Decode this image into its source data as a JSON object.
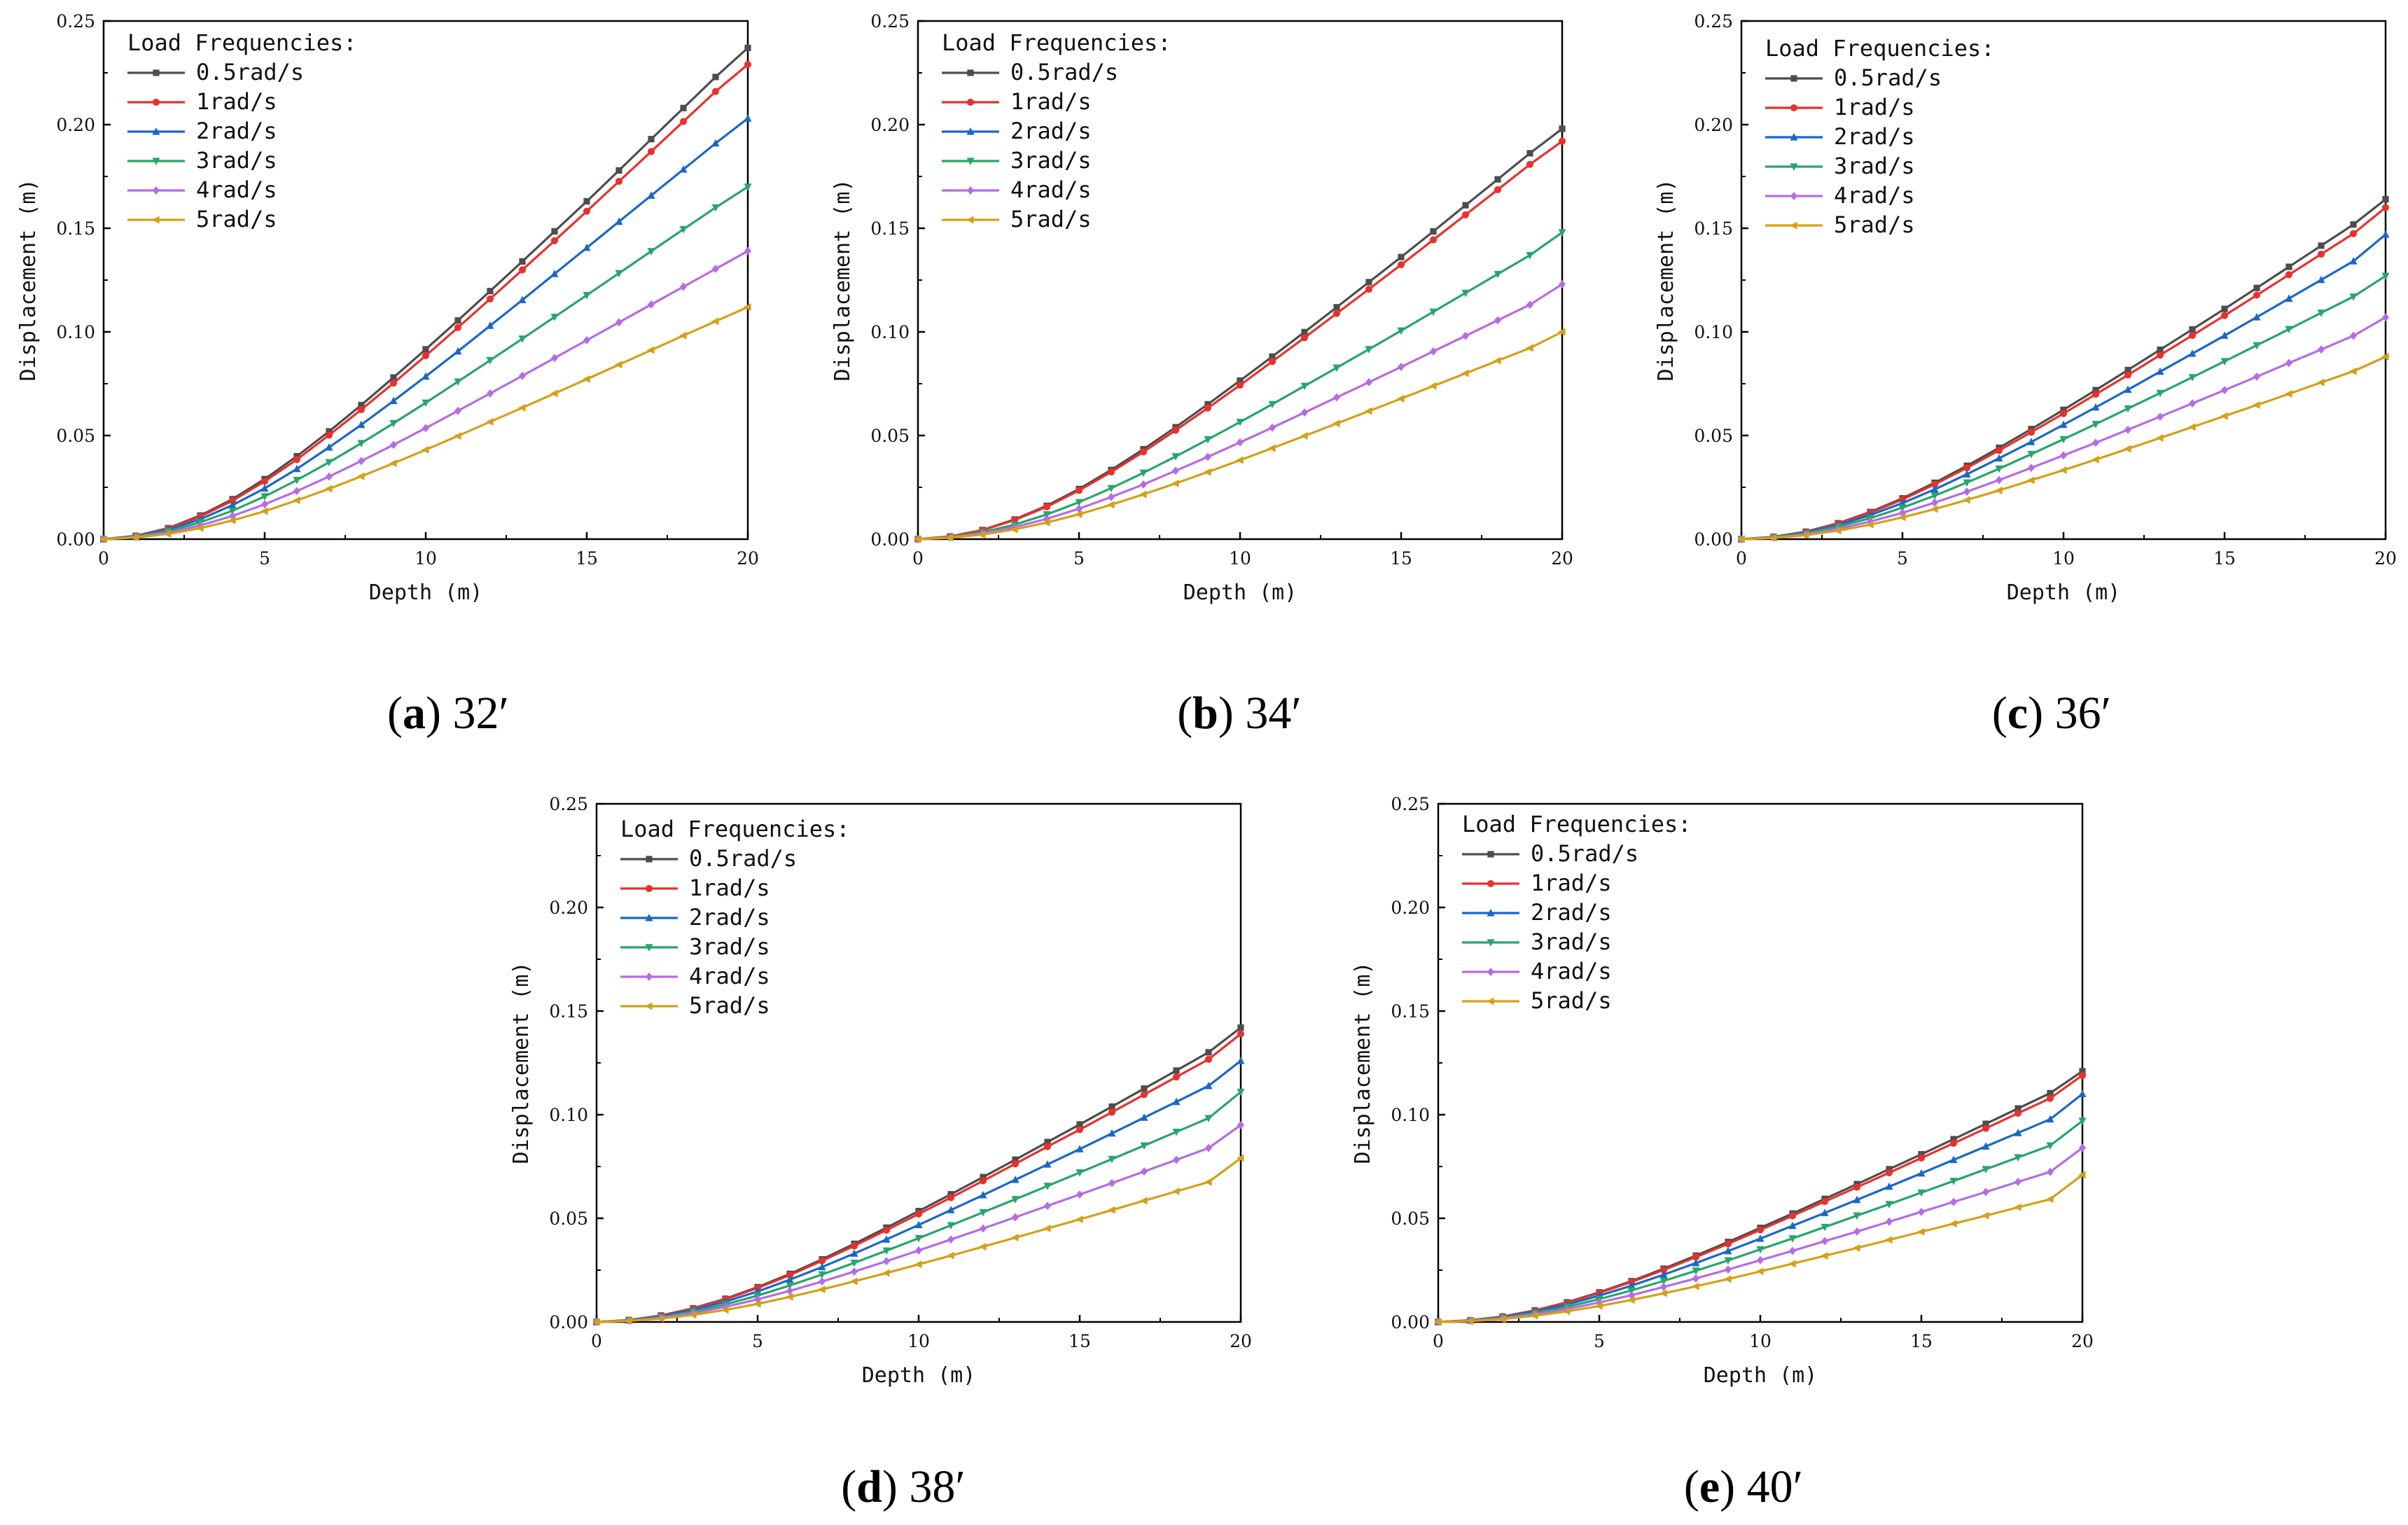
{
  "chart_data": [
    {
      "type": "line",
      "caption_letter": "a",
      "caption_text": "32′",
      "xlabel": "Depth (m)",
      "ylabel": "Displacement (m)",
      "xlim": [
        0,
        20
      ],
      "ylim": [
        0,
        0.25
      ],
      "xticks": [
        "0",
        "5",
        "10",
        "15",
        "20"
      ],
      "yticks": [
        "0.00",
        "0.05",
        "0.10",
        "0.15",
        "0.20",
        "0.25"
      ],
      "legend_title": "Load Frequencies:",
      "x": [
        0,
        1,
        2,
        3,
        4,
        5,
        6,
        7,
        8,
        9,
        10,
        11,
        12,
        13,
        14,
        15,
        16,
        17,
        18,
        19,
        20
      ],
      "series": [
        {
          "name": "0.5rad/s",
          "values": [
            0,
            0.0016,
            0.0053,
            0.0114,
            0.0193,
            0.029,
            0.04,
            0.052,
            0.0647,
            0.078,
            0.0916,
            0.1055,
            0.1197,
            0.134,
            0.1485,
            0.163,
            0.1779,
            0.193,
            0.208,
            0.223,
            0.237
          ]
        },
        {
          "name": "1rad/s",
          "values": [
            0,
            0.0015,
            0.0051,
            0.0109,
            0.0185,
            0.0279,
            0.0384,
            0.0502,
            0.0625,
            0.0753,
            0.0885,
            0.1021,
            0.1159,
            0.1299,
            0.144,
            0.1582,
            0.1726,
            0.187,
            0.2015,
            0.216,
            0.229
          ]
        },
        {
          "name": "2rad/s",
          "values": [
            0,
            0.0014,
            0.0045,
            0.0096,
            0.0164,
            0.0245,
            0.0339,
            0.0443,
            0.0552,
            0.0667,
            0.0785,
            0.0906,
            0.103,
            0.1154,
            0.128,
            0.1406,
            0.1532,
            0.1658,
            0.1784,
            0.191,
            0.203
          ]
        },
        {
          "name": "3rad/s",
          "values": [
            0,
            0.0012,
            0.0038,
            0.0081,
            0.0137,
            0.0206,
            0.0285,
            0.0371,
            0.0463,
            0.0559,
            0.0658,
            0.076,
            0.0863,
            0.0967,
            0.1072,
            0.1177,
            0.1283,
            0.1389,
            0.1495,
            0.16,
            0.17
          ]
        },
        {
          "name": "4rad/s",
          "values": [
            0,
            0.001,
            0.0031,
            0.0066,
            0.0112,
            0.0168,
            0.0232,
            0.0302,
            0.0377,
            0.0455,
            0.0536,
            0.0619,
            0.0703,
            0.0788,
            0.0874,
            0.096,
            0.1046,
            0.1132,
            0.1218,
            0.1304,
            0.139
          ]
        },
        {
          "name": "5rad/s",
          "values": [
            0,
            0.0008,
            0.0025,
            0.0053,
            0.009,
            0.0135,
            0.0187,
            0.0243,
            0.0303,
            0.0366,
            0.0431,
            0.0498,
            0.0566,
            0.0634,
            0.0703,
            0.0772,
            0.0842,
            0.0912,
            0.0982,
            0.1051,
            0.112
          ]
        }
      ]
    },
    {
      "type": "line",
      "caption_letter": "b",
      "caption_text": "34′",
      "xlabel": "Depth (m)",
      "ylabel": "Displacement (m)",
      "xlim": [
        0,
        20
      ],
      "ylim": [
        0,
        0.25
      ],
      "xticks": [
        "0",
        "5",
        "10",
        "15",
        "20"
      ],
      "yticks": [
        "0.00",
        "0.05",
        "0.10",
        "0.15",
        "0.20",
        "0.25"
      ],
      "legend_title": "Load Frequencies:",
      "x": [
        0,
        1,
        2,
        3,
        4,
        5,
        6,
        7,
        8,
        9,
        10,
        11,
        12,
        13,
        14,
        15,
        16,
        17,
        18,
        19,
        20
      ],
      "series": [
        {
          "name": "0.5rad/s",
          "values": [
            0,
            0.0013,
            0.0044,
            0.0095,
            0.0161,
            0.0242,
            0.0334,
            0.0434,
            0.054,
            0.0651,
            0.0765,
            0.0881,
            0.0999,
            0.1119,
            0.124,
            0.1361,
            0.1485,
            0.1611,
            0.1736,
            0.1862,
            0.198
          ]
        },
        {
          "name": "1rad/s",
          "values": [
            0,
            0.0013,
            0.0043,
            0.0092,
            0.0156,
            0.0235,
            0.0324,
            0.0421,
            0.0525,
            0.0633,
            0.0743,
            0.0857,
            0.0972,
            0.1089,
            0.1206,
            0.1324,
            0.1444,
            0.1565,
            0.1686,
            0.1808,
            0.192
          ]
        },
        {
          "name": "3rad/s",
          "values": [
            0,
            0.001,
            0.0033,
            0.007,
            0.0119,
            0.0178,
            0.0246,
            0.032,
            0.0399,
            0.0481,
            0.0565,
            0.0651,
            0.0739,
            0.0827,
            0.0916,
            0.1006,
            0.1097,
            0.1188,
            0.1279,
            0.137,
            0.148
          ]
        },
        {
          "name": "4rad/s",
          "values": [
            0,
            0.0008,
            0.0027,
            0.0058,
            0.0098,
            0.0147,
            0.0203,
            0.0264,
            0.033,
            0.0397,
            0.0467,
            0.0538,
            0.0611,
            0.0684,
            0.0757,
            0.0831,
            0.0906,
            0.0981,
            0.1056,
            0.1131,
            0.123
          ]
        },
        {
          "name": "5rad/s",
          "values": [
            0,
            0.0007,
            0.0022,
            0.0047,
            0.008,
            0.012,
            0.0166,
            0.0216,
            0.0269,
            0.0324,
            0.0381,
            0.0439,
            0.0498,
            0.0558,
            0.0618,
            0.0678,
            0.0739,
            0.08,
            0.0861,
            0.0922,
            0.1
          ]
        }
      ],
      "legend_entries": [
        "0.5rad/s",
        "1rad/s",
        "2rad/s",
        "3rad/s",
        "4rad/s",
        "5rad/s"
      ]
    },
    {
      "type": "line",
      "caption_letter": "c",
      "caption_text": "36′",
      "xlabel": "Depth (m)",
      "ylabel": "Displacement (m)",
      "xlim": [
        0,
        20
      ],
      "ylim": [
        0,
        0.25
      ],
      "xticks": [
        "0",
        "5",
        "10",
        "15",
        "20"
      ],
      "yticks": [
        "0.00",
        "0.05",
        "0.10",
        "0.15",
        "0.20",
        "0.25"
      ],
      "legend_title": "Load Frequencies:",
      "x": [
        0,
        1,
        2,
        3,
        4,
        5,
        6,
        7,
        8,
        9,
        10,
        11,
        12,
        13,
        14,
        15,
        16,
        17,
        18,
        19,
        20
      ],
      "series": [
        {
          "name": "0.5rad/s",
          "values": [
            0,
            0.0011,
            0.0036,
            0.0077,
            0.0131,
            0.0197,
            0.0272,
            0.0354,
            0.0441,
            0.0531,
            0.0624,
            0.0719,
            0.0816,
            0.0914,
            0.1012,
            0.1111,
            0.1212,
            0.1314,
            0.1416,
            0.1518,
            0.164
          ]
        },
        {
          "name": "1rad/s",
          "values": [
            0,
            0.0011,
            0.0035,
            0.0075,
            0.0127,
            0.0191,
            0.0264,
            0.0344,
            0.0428,
            0.0516,
            0.0606,
            0.0699,
            0.0792,
            0.0888,
            0.0983,
            0.1079,
            0.1177,
            0.1276,
            0.1375,
            0.1474,
            0.16
          ]
        },
        {
          "name": "2rad/s",
          "values": [
            0,
            0.001,
            0.0032,
            0.0068,
            0.0116,
            0.0174,
            0.024,
            0.0313,
            0.039,
            0.0469,
            0.0552,
            0.0636,
            0.0721,
            0.0808,
            0.0895,
            0.0982,
            0.1071,
            0.1161,
            0.1251,
            0.1341,
            0.147
          ]
        },
        {
          "name": "3rad/s",
          "values": [
            0,
            0.0009,
            0.0028,
            0.006,
            0.0101,
            0.0152,
            0.021,
            0.0273,
            0.034,
            0.041,
            0.0482,
            0.0555,
            0.063,
            0.0705,
            0.0781,
            0.0858,
            0.0935,
            0.1013,
            0.1092,
            0.117,
            0.127
          ]
        },
        {
          "name": "4rad/s",
          "values": [
            0,
            0.0007,
            0.0023,
            0.005,
            0.0085,
            0.0127,
            0.0176,
            0.0229,
            0.0285,
            0.0344,
            0.0404,
            0.0465,
            0.0528,
            0.0591,
            0.0655,
            0.0719,
            0.0784,
            0.085,
            0.0915,
            0.0981,
            0.107
          ]
        },
        {
          "name": "5rad/s",
          "values": [
            0,
            0.0006,
            0.0019,
            0.0041,
            0.007,
            0.0105,
            0.0145,
            0.0189,
            0.0235,
            0.0284,
            0.0333,
            0.0384,
            0.0436,
            0.0488,
            0.0541,
            0.0594,
            0.0647,
            0.0701,
            0.0756,
            0.081,
            0.088
          ]
        }
      ]
    },
    {
      "type": "line",
      "caption_letter": "d",
      "caption_text": "38′",
      "xlabel": "Depth (m)",
      "ylabel": "Displacement (m)",
      "xlim": [
        0,
        20
      ],
      "ylim": [
        0,
        0.25
      ],
      "xticks": [
        "0",
        "5",
        "10",
        "15",
        "20"
      ],
      "yticks": [
        "0.00",
        "0.05",
        "0.10",
        "0.15",
        "0.20",
        "0.25"
      ],
      "legend_title": "Load Frequencies:",
      "x": [
        0,
        1,
        2,
        3,
        4,
        5,
        6,
        7,
        8,
        9,
        10,
        11,
        12,
        13,
        14,
        15,
        16,
        17,
        18,
        19,
        20
      ],
      "series": [
        {
          "name": "0.5rad/s",
          "values": [
            0,
            0.0009,
            0.0031,
            0.0066,
            0.0112,
            0.0168,
            0.0232,
            0.0302,
            0.0377,
            0.0455,
            0.0535,
            0.0616,
            0.0699,
            0.0783,
            0.0868,
            0.0953,
            0.1039,
            0.1126,
            0.1213,
            0.1301,
            0.142
          ]
        },
        {
          "name": "1rad/s",
          "values": [
            0,
            0.0009,
            0.003,
            0.0064,
            0.0109,
            0.0164,
            0.0226,
            0.0295,
            0.0367,
            0.0443,
            0.0521,
            0.06,
            0.0681,
            0.0763,
            0.0846,
            0.0928,
            0.1012,
            0.1097,
            0.1182,
            0.1267,
            0.139
          ]
        },
        {
          "name": "2rad/s",
          "values": [
            0,
            0.0008,
            0.0027,
            0.0058,
            0.0098,
            0.0147,
            0.0204,
            0.0265,
            0.033,
            0.0398,
            0.0468,
            0.054,
            0.0612,
            0.0686,
            0.076,
            0.0834,
            0.091,
            0.0986,
            0.1062,
            0.1139,
            0.126
          ]
        },
        {
          "name": "3rad/s",
          "values": [
            0,
            0.0007,
            0.0023,
            0.005,
            0.0085,
            0.0127,
            0.0176,
            0.0229,
            0.0285,
            0.0344,
            0.0404,
            0.0466,
            0.0529,
            0.0592,
            0.0656,
            0.0721,
            0.0786,
            0.0851,
            0.0917,
            0.0983,
            0.111
          ]
        },
        {
          "name": "4rad/s",
          "values": [
            0,
            0.0006,
            0.002,
            0.0043,
            0.0073,
            0.0109,
            0.015,
            0.0195,
            0.0243,
            0.0293,
            0.0345,
            0.0398,
            0.0451,
            0.0505,
            0.056,
            0.0615,
            0.067,
            0.0726,
            0.0782,
            0.0839,
            0.095
          ]
        },
        {
          "name": "5rad/s",
          "values": [
            0,
            0.0005,
            0.0016,
            0.0034,
            0.0058,
            0.0087,
            0.0121,
            0.0157,
            0.0196,
            0.0236,
            0.0278,
            0.032,
            0.0363,
            0.0407,
            0.0451,
            0.0495,
            0.054,
            0.0585,
            0.063,
            0.0675,
            0.079
          ]
        }
      ]
    },
    {
      "type": "line",
      "caption_letter": "e",
      "caption_text": "40′",
      "xlabel": "Depth (m)",
      "ylabel": "Displacement (m)",
      "xlim": [
        0,
        20
      ],
      "ylim": [
        0,
        0.25
      ],
      "xticks": [
        "0",
        "5",
        "10",
        "15",
        "20"
      ],
      "yticks": [
        "0.00",
        "0.05",
        "0.10",
        "0.15",
        "0.20",
        "0.25"
      ],
      "legend_title": "Load Frequencies:",
      "x": [
        0,
        1,
        2,
        3,
        4,
        5,
        6,
        7,
        8,
        9,
        10,
        11,
        12,
        13,
        14,
        15,
        16,
        17,
        18,
        19,
        20
      ],
      "series": [
        {
          "name": "0.5rad/s",
          "values": [
            0,
            0.0008,
            0.0026,
            0.0056,
            0.0095,
            0.0143,
            0.0197,
            0.0257,
            0.032,
            0.0386,
            0.0454,
            0.0523,
            0.0594,
            0.0665,
            0.0737,
            0.0809,
            0.0882,
            0.0956,
            0.103,
            0.1104,
            0.121
          ]
        },
        {
          "name": "1rad/s",
          "values": [
            0,
            0.0008,
            0.0026,
            0.0055,
            0.0093,
            0.014,
            0.0193,
            0.0251,
            0.0313,
            0.0377,
            0.0444,
            0.0512,
            0.0581,
            0.065,
            0.072,
            0.0791,
            0.0862,
            0.0934,
            0.1007,
            0.1079,
            0.119
          ]
        },
        {
          "name": "2rad/s",
          "values": [
            0,
            0.0007,
            0.0023,
            0.005,
            0.0084,
            0.0127,
            0.0175,
            0.0228,
            0.0284,
            0.0342,
            0.0402,
            0.0464,
            0.0526,
            0.0589,
            0.0653,
            0.0717,
            0.0782,
            0.0847,
            0.0912,
            0.0978,
            0.11
          ]
        },
        {
          "name": "3rad/s",
          "values": [
            0,
            0.0006,
            0.002,
            0.0043,
            0.0073,
            0.011,
            0.0152,
            0.0198,
            0.0247,
            0.0297,
            0.035,
            0.0403,
            0.0458,
            0.0513,
            0.0568,
            0.0624,
            0.068,
            0.0737,
            0.0794,
            0.0851,
            0.097
          ]
        },
        {
          "name": "4rad/s",
          "values": [
            0,
            0.0005,
            0.0017,
            0.0037,
            0.0062,
            0.0094,
            0.0129,
            0.0169,
            0.021,
            0.0253,
            0.0298,
            0.0343,
            0.039,
            0.0436,
            0.0484,
            0.0531,
            0.0579,
            0.0627,
            0.0676,
            0.0724,
            0.084
          ]
        },
        {
          "name": "5rad/s",
          "values": [
            0,
            0.0004,
            0.0014,
            0.003,
            0.0051,
            0.0077,
            0.0106,
            0.0138,
            0.0172,
            0.0207,
            0.0244,
            0.0281,
            0.0319,
            0.0357,
            0.0396,
            0.0435,
            0.0474,
            0.0513,
            0.0553,
            0.0592,
            0.071
          ]
        }
      ]
    }
  ],
  "series_colors": {
    "0.5rad/s": "#4d4d4d",
    "1rad/s": "#e8312d",
    "2rad/s": "#1a67c9",
    "3rad/s": "#27a56a",
    "4rad/s": "#b56be6",
    "5rad/s": "#d4a017"
  }
}
